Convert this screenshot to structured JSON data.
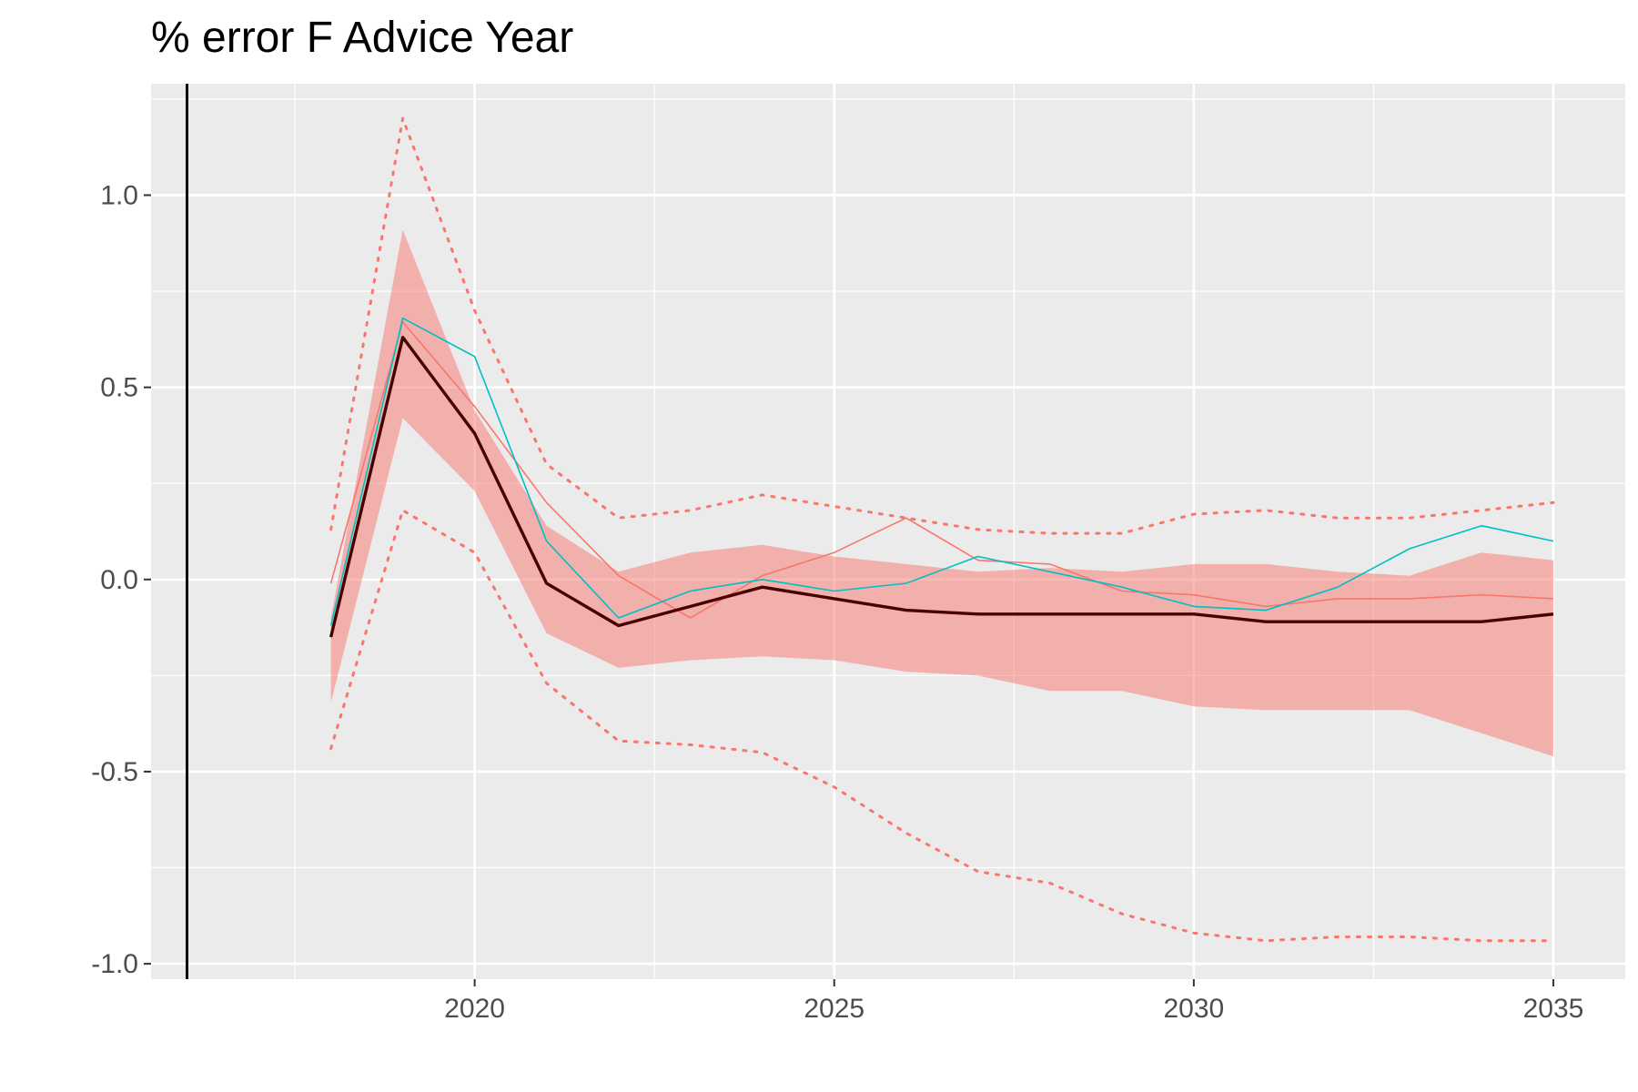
{
  "chart_data": {
    "type": "line",
    "title": "% error F Advice Year",
    "xlabel": "",
    "ylabel": "",
    "xlim": [
      2015.5,
      2036.0
    ],
    "ylim": [
      -1.04,
      1.29
    ],
    "x_ticks": [
      2020,
      2025,
      2030,
      2035
    ],
    "x_tick_labels": [
      "2020",
      "2025",
      "2030",
      "2035"
    ],
    "y_ticks": [
      -1.0,
      -0.5,
      0.0,
      0.5,
      1.0
    ],
    "y_tick_labels": [
      "-1.0",
      "-0.5",
      "0.0",
      "0.5",
      "1.0"
    ],
    "grid": true,
    "legend": "none",
    "vline_x": 2016,
    "colors": {
      "panel": "#ebebeb",
      "grid": "#ffffff",
      "ribbon": "#f8766d",
      "median": "#4a0000",
      "red": "#f8766d",
      "teal": "#00bfc4",
      "vline": "#000000"
    },
    "x": [
      2018,
      2019,
      2020,
      2021,
      2022,
      2023,
      2024,
      2025,
      2026,
      2027,
      2028,
      2029,
      2030,
      2031,
      2032,
      2033,
      2034,
      2035
    ],
    "ribbon": {
      "lower": [
        -0.32,
        0.42,
        0.23,
        -0.14,
        -0.23,
        -0.21,
        -0.2,
        -0.21,
        -0.24,
        -0.25,
        -0.29,
        -0.29,
        -0.33,
        -0.34,
        -0.34,
        -0.34,
        -0.4,
        -0.46
      ],
      "upper": [
        -0.1,
        0.91,
        0.44,
        0.14,
        0.02,
        0.07,
        0.09,
        0.06,
        0.04,
        0.02,
        0.03,
        0.02,
        0.04,
        0.04,
        0.02,
        0.01,
        0.07,
        0.05
      ]
    },
    "series": [
      {
        "style": "solid-thick",
        "color": "#4a0000",
        "values": [
          -0.15,
          0.63,
          0.38,
          -0.01,
          -0.12,
          -0.07,
          -0.02,
          -0.05,
          -0.08,
          -0.09,
          -0.09,
          -0.09,
          -0.09,
          -0.11,
          -0.11,
          -0.11,
          -0.11,
          -0.09
        ]
      },
      {
        "style": "dotted",
        "color": "#f8766d",
        "values": [
          0.13,
          1.2,
          0.7,
          0.3,
          0.16,
          0.18,
          0.22,
          0.19,
          0.16,
          0.13,
          0.12,
          0.12,
          0.17,
          0.18,
          0.16,
          0.16,
          0.18,
          0.2
        ]
      },
      {
        "style": "dotted",
        "color": "#f8766d",
        "values": [
          -0.44,
          0.18,
          0.07,
          -0.27,
          -0.42,
          -0.43,
          -0.45,
          -0.54,
          -0.66,
          -0.76,
          -0.79,
          -0.87,
          -0.92,
          -0.94,
          -0.93,
          -0.93,
          -0.94,
          -0.94
        ]
      },
      {
        "style": "thin",
        "color": "#f8766d",
        "values": [
          -0.01,
          0.67,
          0.45,
          0.2,
          0.01,
          -0.1,
          0.01,
          0.07,
          0.16,
          0.05,
          0.04,
          -0.03,
          -0.04,
          -0.07,
          -0.05,
          -0.05,
          -0.04,
          -0.05
        ]
      },
      {
        "style": "thin",
        "color": "#00bfc4",
        "values": [
          -0.12,
          0.68,
          0.58,
          0.1,
          -0.1,
          -0.03,
          0.0,
          -0.03,
          -0.01,
          0.06,
          0.02,
          -0.02,
          -0.07,
          -0.08,
          -0.02,
          0.08,
          0.14,
          0.1
        ]
      }
    ]
  }
}
